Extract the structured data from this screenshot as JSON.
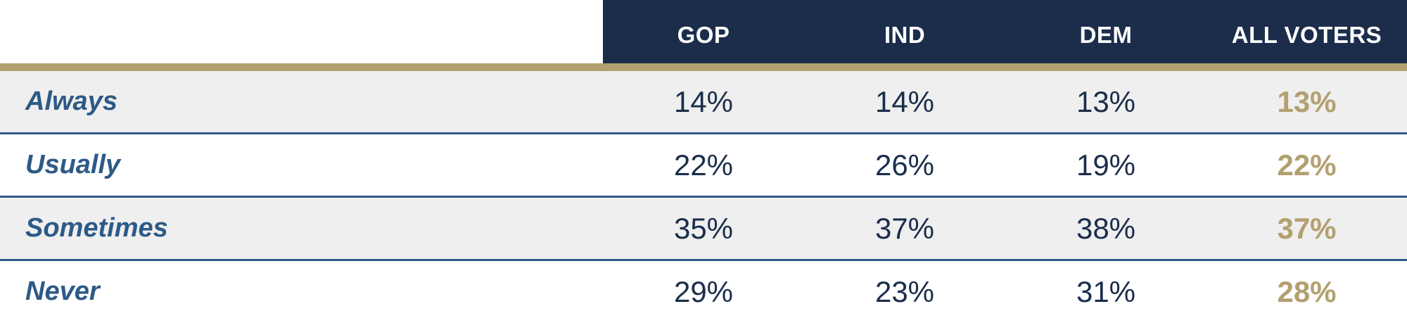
{
  "chart_data": {
    "type": "table",
    "columns": [
      "GOP",
      "IND",
      "DEM",
      "ALL VOTERS"
    ],
    "rows": [
      {
        "label": "Always",
        "values": [
          "14%",
          "14%",
          "13%",
          "13%"
        ]
      },
      {
        "label": "Usually",
        "values": [
          "22%",
          "26%",
          "19%",
          "22%"
        ]
      },
      {
        "label": "Sometimes",
        "values": [
          "35%",
          "37%",
          "38%",
          "37%"
        ]
      },
      {
        "label": "Never",
        "values": [
          "29%",
          "23%",
          "31%",
          "28%"
        ]
      }
    ],
    "numeric_values": {
      "GOP": [
        14,
        22,
        35,
        29
      ],
      "IND": [
        14,
        26,
        37,
        23
      ],
      "DEM": [
        13,
        19,
        38,
        31
      ],
      "ALL VOTERS": [
        13,
        22,
        37,
        28
      ]
    }
  },
  "colors": {
    "header_bg": "#1b2d4b",
    "gold_accent": "#b3a070",
    "row_label": "#2d5a87",
    "divider": "#2d5a87",
    "shaded_row": "#efefef",
    "cell_text": "#1b2d4b"
  }
}
